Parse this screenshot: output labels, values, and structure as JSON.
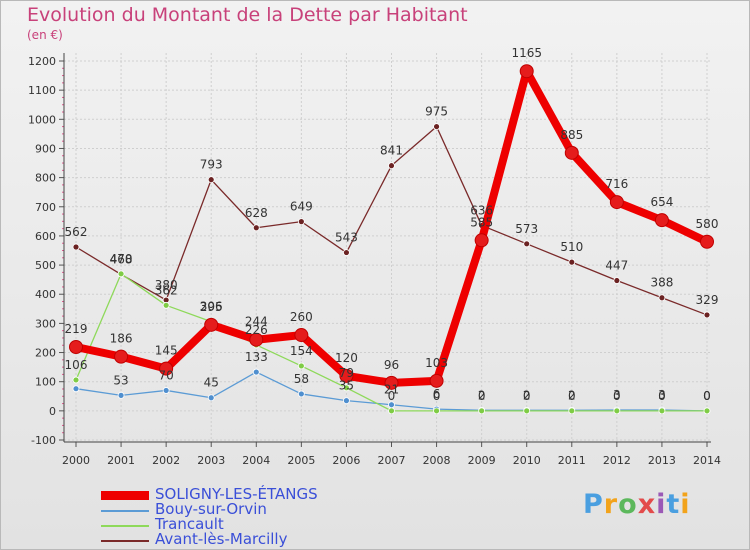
{
  "header": {
    "title": "Evolution du Montant de la Dette par Habitant",
    "subtitle": "(en €)"
  },
  "logo": {
    "text": "Proxiti",
    "colors": [
      "#4a9fe0",
      "#f2a31b",
      "#5cb85c",
      "#e34b4b",
      "#9b59b6",
      "#4a9fe0",
      "#f2a31b"
    ]
  },
  "chart_data": {
    "type": "line",
    "x": [
      "2000",
      "2001",
      "2002",
      "2003",
      "2004",
      "2005",
      "2006",
      "2007",
      "2008",
      "2009",
      "2010",
      "2011",
      "2012",
      "2013",
      "2014"
    ],
    "ylim": [
      -100,
      1200
    ],
    "yticks": [
      "-100",
      "0",
      "100",
      "200",
      "300",
      "400",
      "500",
      "600",
      "700",
      "800",
      "900",
      "1000",
      "1100",
      "1200"
    ],
    "grid": true,
    "legend_position": "bottom-left",
    "series": [
      {
        "name": "SOLIGNY-LES-ÉTANGS",
        "color": "#ee0000",
        "values": [
          219,
          186,
          145,
          295,
          244,
          260,
          120,
          96,
          103,
          585,
          1165,
          885,
          716,
          654,
          580
        ],
        "labels": [
          "219",
          "186",
          "145",
          "295",
          "244",
          "260",
          "120",
          "96",
          "103",
          "585",
          "1165",
          "885",
          "716",
          "654",
          "580"
        ]
      },
      {
        "name": "Bouy-sur-Orvin",
        "color": "#5b9bd5",
        "values": [
          76,
          53,
          70,
          45,
          133,
          58,
          35,
          21,
          6,
          2,
          2,
          2,
          3,
          3,
          0
        ],
        "labels": [
          "",
          "53",
          "70",
          "45",
          "133",
          "58",
          "35",
          "21",
          "6",
          "2",
          "2",
          "2",
          "3",
          "3",
          "0"
        ]
      },
      {
        "name": "Trancault",
        "color": "#8ed95a",
        "values": [
          106,
          470,
          362,
          306,
          226,
          154,
          79,
          0,
          0,
          0,
          0,
          0,
          0,
          0,
          0
        ],
        "labels": [
          "106",
          "470",
          "362",
          "306",
          "226",
          "154",
          "79",
          "0",
          "0",
          "0",
          "0",
          "0",
          "0",
          "0",
          "0"
        ]
      },
      {
        "name": "Avant-lès-Marcilly",
        "color": "#7a2a2a",
        "values": [
          562,
          468,
          380,
          793,
          628,
          649,
          543,
          841,
          975,
          636,
          573,
          510,
          447,
          388,
          329
        ],
        "labels": [
          "562",
          "468",
          "380",
          "793",
          "628",
          "649",
          "543",
          "841",
          "975",
          "636",
          "573",
          "510",
          "447",
          "388",
          "329"
        ]
      }
    ]
  }
}
